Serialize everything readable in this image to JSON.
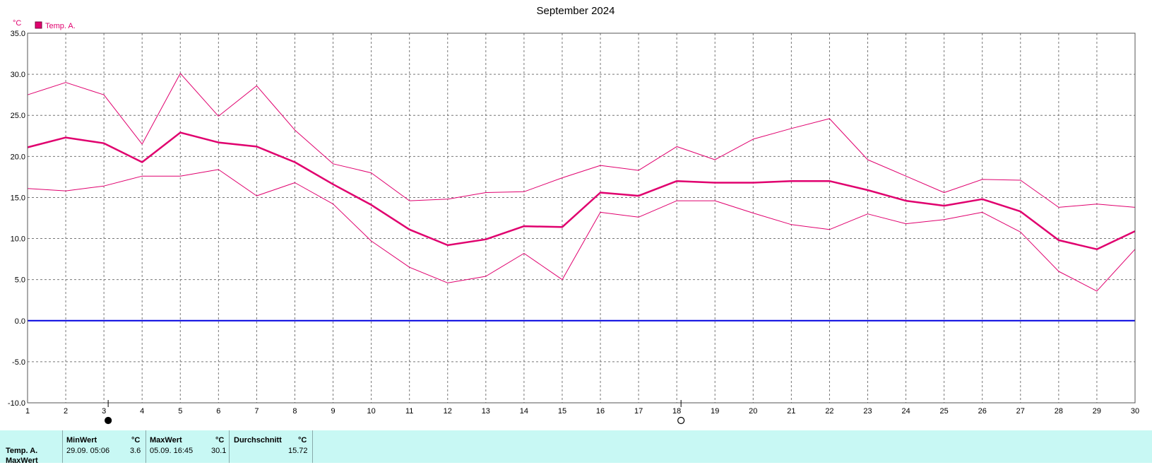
{
  "chart_data": {
    "type": "line",
    "title": "September 2024",
    "ylabel": "°C",
    "ylim": [
      -10,
      35
    ],
    "yticks": [
      "35.0",
      "30.0",
      "25.0",
      "20.0",
      "15.0",
      "10.0",
      "5.0",
      "0.0",
      "-5.0",
      "-10.0"
    ],
    "x": [
      1,
      2,
      3,
      4,
      5,
      6,
      7,
      8,
      9,
      10,
      11,
      12,
      13,
      14,
      15,
      16,
      17,
      18,
      19,
      20,
      21,
      22,
      23,
      24,
      25,
      26,
      27,
      28,
      29,
      30
    ],
    "xlim": [
      1,
      30
    ],
    "grid": true,
    "legend": {
      "placement": "top-left",
      "entries": [
        "Temp. A."
      ]
    },
    "series": [
      {
        "name": "Temp. A.",
        "role": "max",
        "values": [
          27.5,
          29.0,
          27.5,
          21.5,
          30.1,
          24.9,
          28.6,
          23.2,
          19.1,
          18.0,
          14.6,
          14.8,
          15.6,
          15.7,
          17.4,
          18.9,
          18.3,
          21.2,
          19.6,
          22.1,
          23.4,
          24.6,
          19.6,
          17.6,
          15.6,
          17.2,
          17.1,
          13.8,
          14.2,
          13.8
        ]
      },
      {
        "name": "Temp. A.",
        "role": "mean",
        "values": [
          21.1,
          22.3,
          21.6,
          19.3,
          22.9,
          21.7,
          21.2,
          19.3,
          16.6,
          14.1,
          11.1,
          9.2,
          9.9,
          11.5,
          11.4,
          15.6,
          15.2,
          17.0,
          16.8,
          16.8,
          17.0,
          17.0,
          15.9,
          14.6,
          14.0,
          14.8,
          13.3,
          9.8,
          8.7,
          10.9
        ]
      },
      {
        "name": "Temp. A.",
        "role": "min",
        "values": [
          16.1,
          15.8,
          16.4,
          17.6,
          17.6,
          18.4,
          15.2,
          16.8,
          14.2,
          9.7,
          6.5,
          4.6,
          5.4,
          8.2,
          5.0,
          13.2,
          12.6,
          14.6,
          14.6,
          13.1,
          11.7,
          11.1,
          13.0,
          11.8,
          12.3,
          13.2,
          10.8,
          6.0,
          3.6,
          8.7
        ]
      }
    ],
    "reference_line": {
      "y": 0.0,
      "color": "#0000e0"
    },
    "series_color": "#e0006e",
    "moon_markers": [
      {
        "day": 3,
        "phase": "new-moon"
      },
      {
        "day": 18,
        "phase": "full-moon"
      }
    ]
  },
  "stats": {
    "row_label": "Temp. A.",
    "row_label_next": "MaxWert",
    "min_header": "MinWert",
    "min_unit": "°C",
    "min_datetime": "29.09.  05:06",
    "min_value": "3.6",
    "max_header": "MaxWert",
    "max_unit": "°C",
    "max_datetime": "05.09.  16:45",
    "max_value": "30.1",
    "avg_header": "Durchschnitt",
    "avg_unit": "°C",
    "avg_value": "15.72"
  }
}
